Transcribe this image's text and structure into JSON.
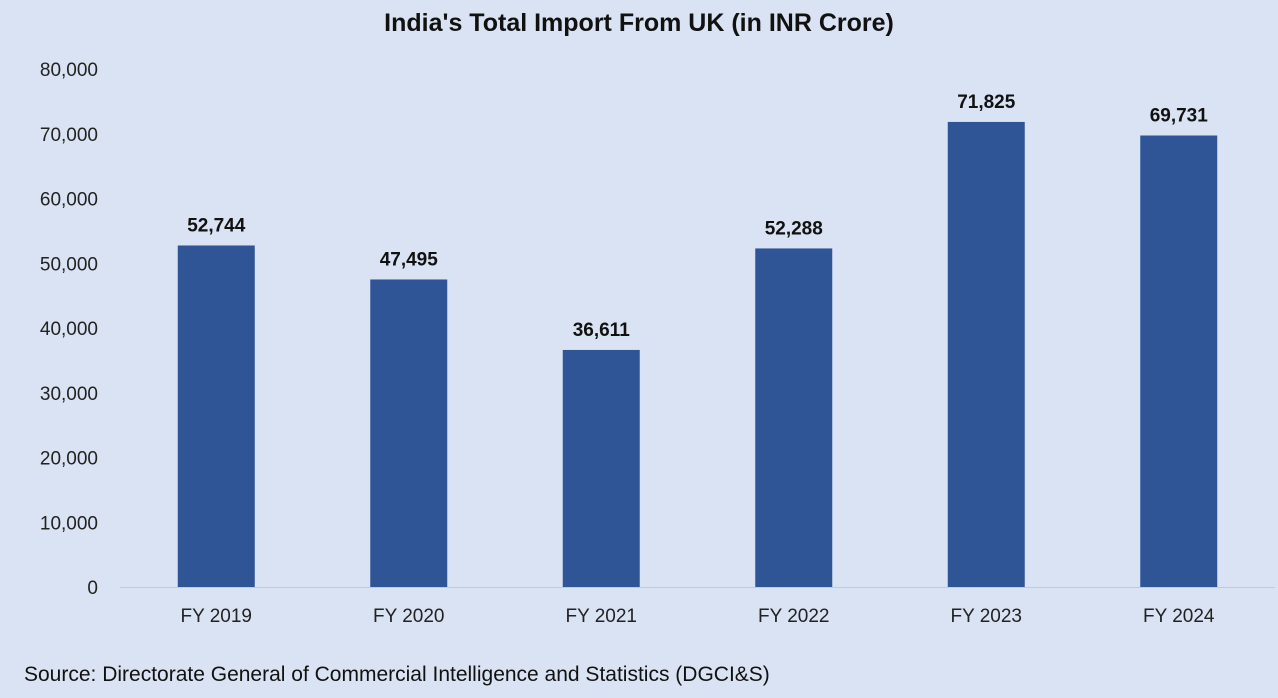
{
  "chart_data": {
    "type": "bar",
    "title": "India's Total Import From UK (in INR Crore)",
    "categories": [
      "FY 2019",
      "FY 2020",
      "FY 2021",
      "FY 2022",
      "FY 2023",
      "FY 2024"
    ],
    "values": [
      52744,
      47495,
      36611,
      52288,
      71825,
      69731
    ],
    "data_labels": [
      "52,744",
      "47,495",
      "36,611",
      "52,288",
      "71,825",
      "69,731"
    ],
    "ylim": [
      0,
      80000
    ],
    "yticks": [
      0,
      10000,
      20000,
      30000,
      40000,
      50000,
      60000,
      70000,
      80000
    ],
    "ytick_labels": [
      "0",
      "10,000",
      "20,000",
      "30,000",
      "40,000",
      "50,000",
      "60,000",
      "70,000",
      "80,000"
    ],
    "grid": false,
    "legend": "none",
    "bar_color": "#2f5597",
    "background_color": "#dae3f3",
    "source": "Source: Directorate General of Commercial Intelligence and Statistics (DGCI&S)"
  }
}
